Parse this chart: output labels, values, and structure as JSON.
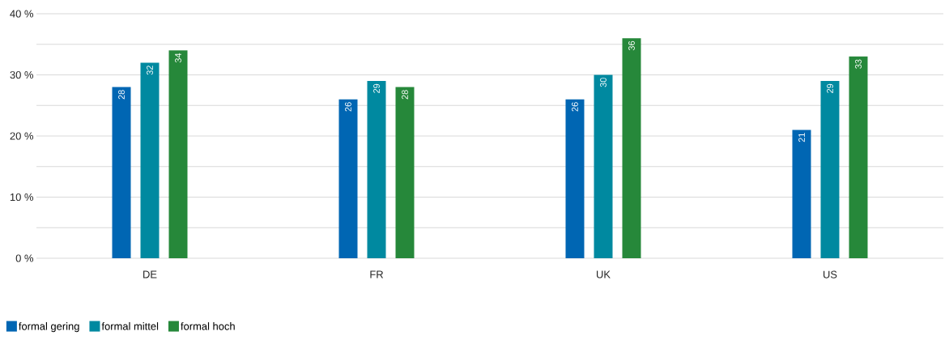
{
  "chart_data": {
    "type": "bar",
    "categories": [
      "DE",
      "FR",
      "UK",
      "US"
    ],
    "series": [
      {
        "name": "formal gering",
        "color": "#0066b3",
        "values": [
          28,
          26,
          26,
          21
        ]
      },
      {
        "name": "formal mittel",
        "color": "#0089a0",
        "values": [
          32,
          29,
          30,
          29
        ]
      },
      {
        "name": "formal hoch",
        "color": "#26883a",
        "values": [
          34,
          28,
          36,
          33
        ]
      }
    ],
    "ylim": [
      0,
      40
    ],
    "yticks": [
      {
        "value": 0,
        "label": "0 %"
      },
      {
        "value": 5,
        "label": null
      },
      {
        "value": 10,
        "label": "10 %"
      },
      {
        "value": 15,
        "label": null
      },
      {
        "value": 20,
        "label": "20 %"
      },
      {
        "value": 25,
        "label": null
      },
      {
        "value": 30,
        "label": "30 %"
      },
      {
        "value": 35,
        "label": null
      },
      {
        "value": 40,
        "label": "40 %"
      }
    ],
    "grid": "y",
    "legend": "bottom left",
    "data_labels": true
  }
}
